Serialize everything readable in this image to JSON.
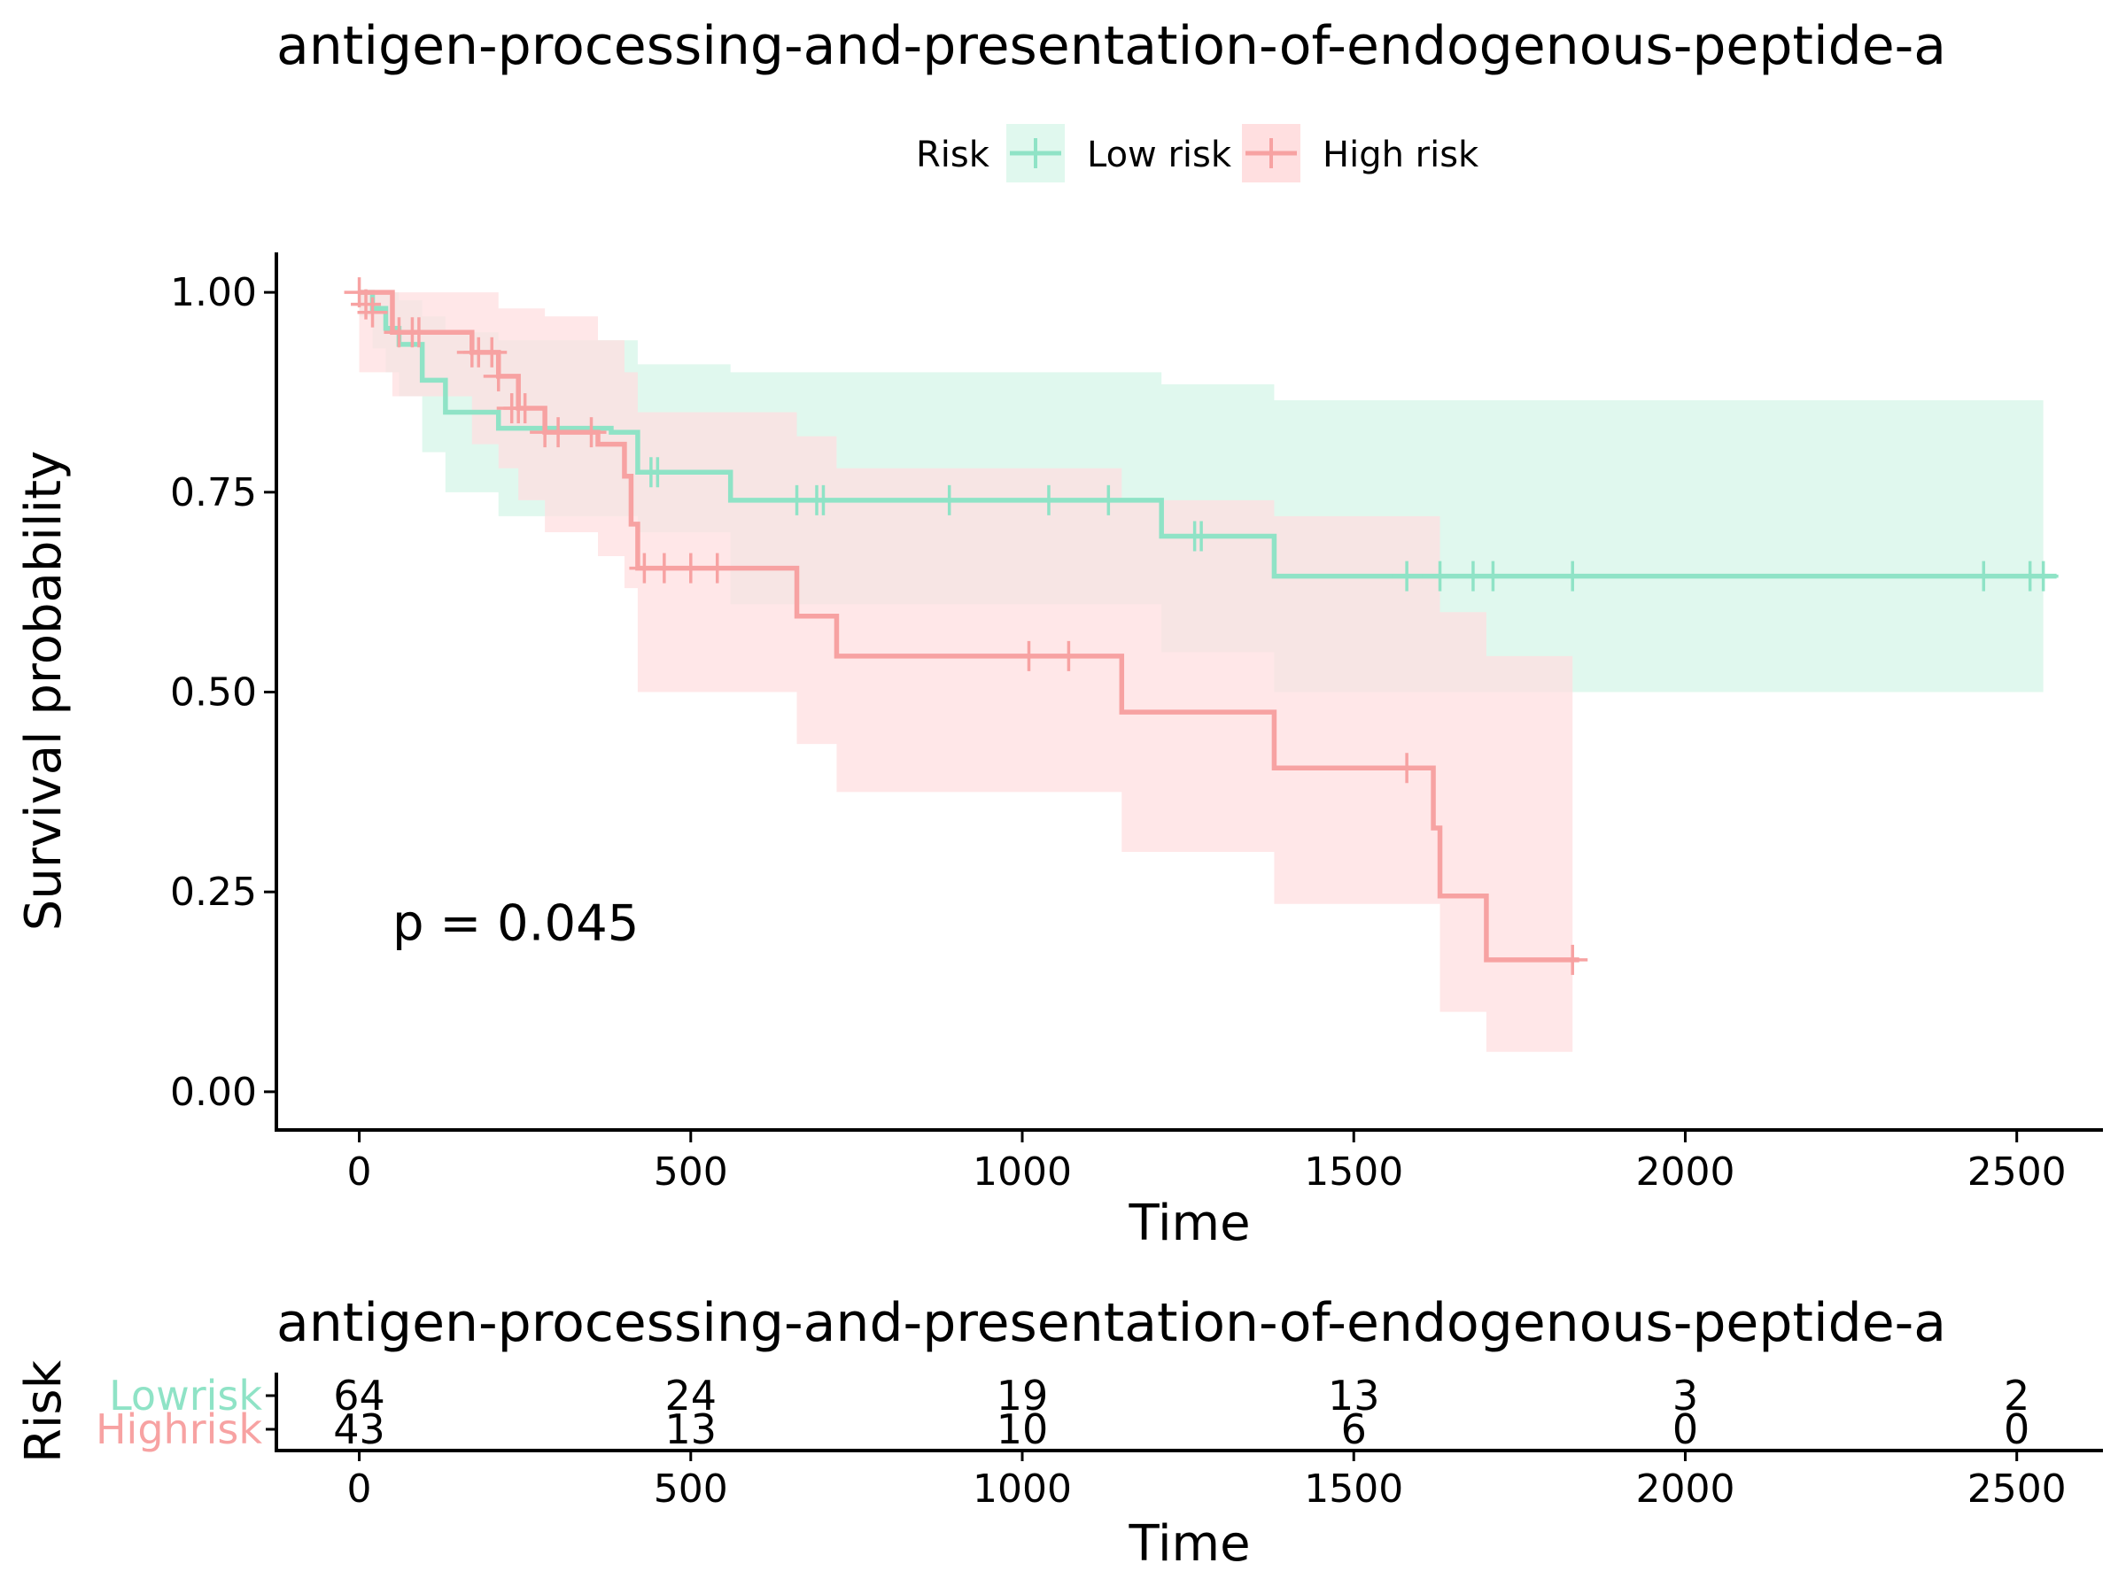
{
  "chart_data": {
    "type": "line",
    "title": "antigen-processing-and-presentation-of-endogenous-peptide-a",
    "legend": {
      "title": "Risk",
      "position": "top"
    },
    "xlabel": "Time",
    "ylabel": "Survival probability",
    "xlim": [
      -125,
      2630
    ],
    "ylim": [
      -0.05,
      1.05
    ],
    "x_ticks": [
      0,
      500,
      1000,
      1500,
      2000,
      2500
    ],
    "x_tick_labels": [
      "0",
      "500",
      "1000",
      "1500",
      "2000",
      "2500"
    ],
    "y_ticks": [
      0,
      0.25,
      0.5,
      0.75,
      1.0
    ],
    "y_tick_labels": [
      "0.00",
      "0.25",
      "0.50",
      "0.75",
      "1.00"
    ],
    "annotation": "p = 0.045",
    "annotation_pos": [
      50,
      0.19
    ],
    "series": [
      {
        "name": "Low risk",
        "color": "#8fe3c6",
        "band_color": "#e0f8ee",
        "step_x": [
          0,
          20,
          40,
          60,
          95,
          130,
          210,
          380,
          420,
          560,
          1210,
          1380,
          2560
        ],
        "step_y": [
          1.0,
          0.98,
          0.955,
          0.935,
          0.89,
          0.85,
          0.83,
          0.825,
          0.775,
          0.74,
          0.695,
          0.645,
          0.645
        ],
        "ci_x": [
          0,
          20,
          40,
          60,
          95,
          130,
          210,
          420,
          560,
          1210,
          1380,
          2540
        ],
        "ci_upper": [
          1.0,
          1.0,
          1.0,
          0.99,
          0.97,
          0.95,
          0.94,
          0.91,
          0.9,
          0.885,
          0.865,
          0.84
        ],
        "ci_lower": [
          0.97,
          0.93,
          0.9,
          0.87,
          0.8,
          0.75,
          0.72,
          0.7,
          0.61,
          0.55,
          0.5,
          0.5
        ],
        "censor_x": [
          440,
          450,
          660,
          690,
          700,
          890,
          1040,
          1130,
          1260,
          1270,
          1580,
          1630,
          1680,
          1710,
          1830,
          2450,
          2520,
          2540
        ],
        "censor_y": [
          0.775,
          0.775,
          0.74,
          0.74,
          0.74,
          0.74,
          0.74,
          0.74,
          0.695,
          0.695,
          0.645,
          0.645,
          0.645,
          0.645,
          0.645,
          0.645,
          0.645,
          0.645
        ]
      },
      {
        "name": "High risk",
        "color": "#f7a2a2",
        "band_color": "#ffdfe0",
        "step_x": [
          0,
          50,
          170,
          210,
          240,
          280,
          360,
          400,
          410,
          420,
          660,
          720,
          1150,
          1380,
          1620,
          1630,
          1700,
          1840
        ],
        "step_y": [
          1.0,
          0.95,
          0.925,
          0.895,
          0.855,
          0.825,
          0.81,
          0.77,
          0.71,
          0.655,
          0.595,
          0.545,
          0.475,
          0.405,
          0.33,
          0.245,
          0.165,
          0.165
        ],
        "ci_x": [
          0,
          50,
          170,
          210,
          240,
          280,
          360,
          400,
          420,
          660,
          720,
          1150,
          1380,
          1630,
          1700,
          1830
        ],
        "ci_upper": [
          1.0,
          1.0,
          1.0,
          0.98,
          0.98,
          0.97,
          0.94,
          0.9,
          0.85,
          0.82,
          0.78,
          0.74,
          0.72,
          0.6,
          0.545,
          0.545
        ],
        "ci_lower": [
          0.9,
          0.87,
          0.81,
          0.78,
          0.74,
          0.7,
          0.67,
          0.63,
          0.5,
          0.435,
          0.375,
          0.3,
          0.235,
          0.1,
          0.05,
          0.05
        ],
        "censor_x": [
          0,
          10,
          20,
          60,
          80,
          90,
          170,
          180,
          200,
          210,
          230,
          240,
          250,
          280,
          300,
          350,
          430,
          460,
          500,
          540,
          1010,
          1070,
          1580,
          1830
        ],
        "censor_y": [
          1.0,
          0.985,
          0.975,
          0.95,
          0.95,
          0.95,
          0.925,
          0.925,
          0.925,
          0.895,
          0.855,
          0.855,
          0.855,
          0.825,
          0.825,
          0.825,
          0.655,
          0.655,
          0.655,
          0.655,
          0.545,
          0.545,
          0.405,
          0.165
        ]
      }
    ],
    "risk_table": {
      "title": "antigen-processing-and-presentation-of-endogenous-peptide-a",
      "ylabel": "Risk",
      "xlabel": "Time",
      "times": [
        0,
        500,
        1000,
        1500,
        2000,
        2500
      ],
      "time_labels": [
        "0",
        "500",
        "1000",
        "1500",
        "2000",
        "2500"
      ],
      "rows": [
        {
          "label": "Lowrisk",
          "color": "#8fe3c6",
          "values": [
            "64",
            "24",
            "19",
            "13",
            "3",
            "2"
          ]
        },
        {
          "label": "Highrisk",
          "color": "#f7a2a2",
          "values": [
            "43",
            "13",
            "10",
            "6",
            "0",
            "0"
          ]
        }
      ]
    }
  }
}
